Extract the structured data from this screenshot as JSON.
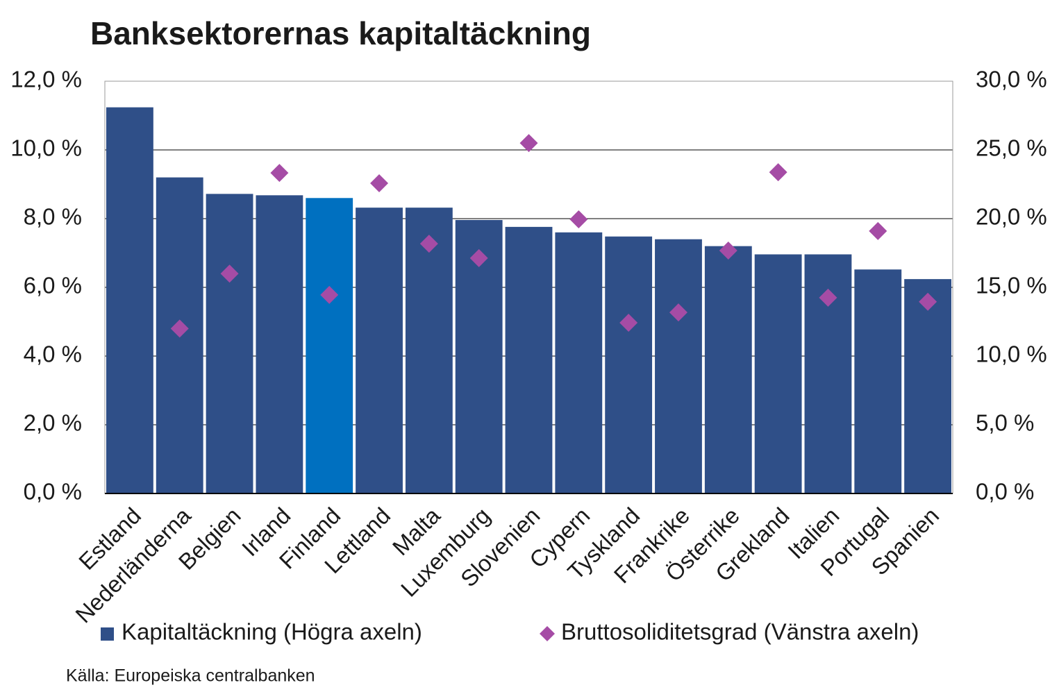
{
  "chart_data": {
    "type": "bar",
    "title": "Banksektorernas kapitaltäckning",
    "source": "Källa: Europeiska centralbanken",
    "categories": [
      "Estland",
      "Nederländerna",
      "Belgien",
      "Irland",
      "Finland",
      "Lettland",
      "Malta",
      "Luxemburg",
      "Slovenien",
      "Cypern",
      "Tyskland",
      "Frankrike",
      "Österrike",
      "Grekland",
      "Italien",
      "Portugal",
      "Spanien"
    ],
    "series": [
      {
        "name": "Kapitaltäckning (Högra axeln)",
        "type": "bar",
        "axis": "y2",
        "color": "#2f4f88",
        "point_colors": [
          "#2f4f88",
          "#2f4f88",
          "#2f4f88",
          "#2f4f88",
          "#0070c0",
          "#2f4f88",
          "#2f4f88",
          "#2f4f88",
          "#2f4f88",
          "#2f4f88",
          "#2f4f88",
          "#2f4f88",
          "#2f4f88",
          "#2f4f88",
          "#2f4f88",
          "#2f4f88",
          "#2f4f88"
        ],
        "values": [
          28.1,
          23.0,
          21.8,
          21.7,
          21.5,
          20.8,
          20.8,
          19.9,
          19.4,
          19.0,
          18.7,
          18.5,
          18.0,
          17.4,
          17.4,
          16.3,
          15.6
        ]
      },
      {
        "name": "Bruttosoliditetsgrad (Vänstra axeln)",
        "type": "scatter",
        "axis": "y",
        "color": "#a54ca5",
        "values": [
          null,
          4.8,
          6.4,
          9.33,
          5.78,
          9.03,
          7.27,
          6.85,
          10.2,
          7.98,
          4.97,
          5.27,
          7.07,
          9.35,
          5.7,
          7.64,
          5.58
        ]
      }
    ],
    "ylim": [
      0,
      12
    ],
    "yticks": [
      {
        "value": 0,
        "label": "0,0 %"
      },
      {
        "value": 2,
        "label": "2,0 %"
      },
      {
        "value": 4,
        "label": "4,0 %"
      },
      {
        "value": 6,
        "label": "6,0 %"
      },
      {
        "value": 8,
        "label": "8,0 %"
      },
      {
        "value": 10,
        "label": "10,0 %"
      },
      {
        "value": 12,
        "label": "12,0 %"
      }
    ],
    "y2lim": [
      0,
      30
    ],
    "y2ticks": [
      {
        "value": 0,
        "label": "0,0 %"
      },
      {
        "value": 5,
        "label": "5,0 %"
      },
      {
        "value": 10,
        "label": "10,0 %"
      },
      {
        "value": 15,
        "label": "15,0 %"
      },
      {
        "value": 20,
        "label": "20,0 %"
      },
      {
        "value": 25,
        "label": "25,0 %"
      },
      {
        "value": 30,
        "label": "30,0 %"
      }
    ],
    "grid": true
  }
}
